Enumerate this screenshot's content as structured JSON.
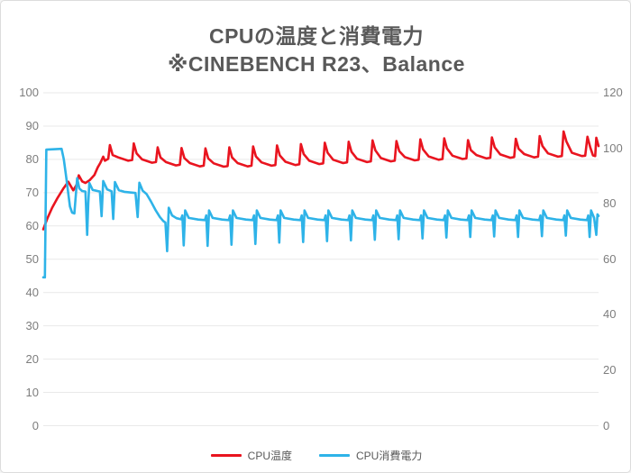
{
  "title": {
    "line1": "CPUの温度と消費電力",
    "line2": "※CINEBENCH R23、Balance"
  },
  "colors": {
    "temp_line": "#e9141f",
    "power_line": "#2eb3e8",
    "gridline": "#e9e9e9",
    "tick_text": "#7d7d7d",
    "title_text": "#595959",
    "frame_border": "#dcdcdc",
    "background": "#ffffff"
  },
  "chart_data": {
    "type": "line",
    "title": "CPUの温度と消費電力 ※CINEBENCH R23、Balance",
    "xlabel": "",
    "x_range": [
      0,
      100
    ],
    "x_ticks_visible": false,
    "grid": "horizontal-only",
    "legend_position": "bottom-center",
    "y_axis_left": {
      "range": [
        0,
        100
      ],
      "ticks": [
        0,
        10,
        20,
        30,
        40,
        50,
        60,
        70,
        80,
        90,
        100
      ],
      "unit": "°C"
    },
    "y_axis_right": {
      "range": [
        0,
        120
      ],
      "ticks": [
        0,
        20,
        40,
        60,
        80,
        100,
        120
      ],
      "unit": "W"
    },
    "series": [
      {
        "name": "CPU温度",
        "axis": "left",
        "unit": "°C",
        "color": "#e9141f",
        "points": [
          [
            0,
            59
          ],
          [
            0.8,
            62.5
          ],
          [
            1.6,
            65.5
          ],
          [
            2.6,
            68.5
          ],
          [
            3.6,
            71.2
          ],
          [
            4.5,
            73.3
          ],
          [
            5.4,
            70.7
          ],
          [
            6,
            72.4
          ],
          [
            6.4,
            75.2
          ],
          [
            7,
            73.4
          ],
          [
            7.6,
            72.9
          ],
          [
            8.4,
            73.8
          ],
          [
            9.2,
            75.3
          ],
          [
            9.8,
            77.6
          ],
          [
            10.3,
            79
          ],
          [
            10.8,
            80.8
          ],
          [
            11.1,
            79.6
          ],
          [
            11.7,
            80.2
          ],
          [
            12,
            84.3
          ],
          [
            12.5,
            81.3
          ],
          [
            13.5,
            80.6
          ],
          [
            15.3,
            79.6
          ],
          [
            16,
            79.8
          ],
          [
            16.3,
            84.8
          ],
          [
            16.8,
            81.8
          ],
          [
            17.8,
            80
          ],
          [
            19.6,
            79
          ],
          [
            20.3,
            79.2
          ],
          [
            20.6,
            83.6
          ],
          [
            21.1,
            80.6
          ],
          [
            22.1,
            79.2
          ],
          [
            23.9,
            78.2
          ],
          [
            24.6,
            78.4
          ],
          [
            24.9,
            83.4
          ],
          [
            25.4,
            80.4
          ],
          [
            26.4,
            78.9
          ],
          [
            28.2,
            77.9
          ],
          [
            28.9,
            78.1
          ],
          [
            29.2,
            83.3
          ],
          [
            29.7,
            80.3
          ],
          [
            30.7,
            78.8
          ],
          [
            32.5,
            77.8
          ],
          [
            33.2,
            78
          ],
          [
            33.5,
            83.6
          ],
          [
            34,
            80.6
          ],
          [
            35,
            78.9
          ],
          [
            36.8,
            77.9
          ],
          [
            37.5,
            78.1
          ],
          [
            37.8,
            83.9
          ],
          [
            38.3,
            80.9
          ],
          [
            39.3,
            79.1
          ],
          [
            41.1,
            78.1
          ],
          [
            41.8,
            78.3
          ],
          [
            42.1,
            84.2
          ],
          [
            42.6,
            81.2
          ],
          [
            43.6,
            79.3
          ],
          [
            45.4,
            78.3
          ],
          [
            46.1,
            78.5
          ],
          [
            46.4,
            84.6
          ],
          [
            46.9,
            81.6
          ],
          [
            47.9,
            79.6
          ],
          [
            49.7,
            78.6
          ],
          [
            50.4,
            78.8
          ],
          [
            50.7,
            85
          ],
          [
            51.2,
            82
          ],
          [
            52.2,
            79.9
          ],
          [
            54,
            78.9
          ],
          [
            54.7,
            79.1
          ],
          [
            55,
            85.3
          ],
          [
            55.5,
            82.3
          ],
          [
            56.5,
            80.2
          ],
          [
            58.3,
            79.2
          ],
          [
            59,
            79.4
          ],
          [
            59.3,
            85.7
          ],
          [
            59.8,
            82.7
          ],
          [
            60.8,
            80.4
          ],
          [
            62.6,
            79.4
          ],
          [
            63.3,
            79.6
          ],
          [
            63.6,
            85.5
          ],
          [
            64.1,
            82.5
          ],
          [
            65.1,
            80.7
          ],
          [
            66.9,
            79.7
          ],
          [
            67.6,
            79.9
          ],
          [
            67.9,
            86
          ],
          [
            68.4,
            83
          ],
          [
            69.4,
            80.9
          ],
          [
            71.2,
            79.9
          ],
          [
            71.9,
            80.1
          ],
          [
            72.2,
            86.3
          ],
          [
            72.7,
            83.3
          ],
          [
            73.7,
            81.1
          ],
          [
            75.5,
            80.1
          ],
          [
            76.2,
            80.3
          ],
          [
            76.5,
            85.8
          ],
          [
            77,
            82.8
          ],
          [
            78,
            81.3
          ],
          [
            79.8,
            80.3
          ],
          [
            80.5,
            80.5
          ],
          [
            80.8,
            86.6
          ],
          [
            81.3,
            83.6
          ],
          [
            82.3,
            81.5
          ],
          [
            84.1,
            80.5
          ],
          [
            84.8,
            80.7
          ],
          [
            85.1,
            86.2
          ],
          [
            85.6,
            83.2
          ],
          [
            86.6,
            81.6
          ],
          [
            88.4,
            80.6
          ],
          [
            89.1,
            80.8
          ],
          [
            89.4,
            87
          ],
          [
            89.9,
            84
          ],
          [
            90.9,
            81.8
          ],
          [
            92.7,
            80.8
          ],
          [
            93.4,
            81
          ],
          [
            93.7,
            88.4
          ],
          [
            94.2,
            85.4
          ],
          [
            95.2,
            82
          ],
          [
            97,
            81
          ],
          [
            97.6,
            81.1
          ],
          [
            98,
            86.8
          ],
          [
            98.5,
            83.6
          ],
          [
            99,
            81.2
          ],
          [
            99.4,
            81
          ],
          [
            99.6,
            86.5
          ],
          [
            100,
            84
          ]
        ]
      },
      {
        "name": "CPU消費電力",
        "axis": "right",
        "unit": "W",
        "color": "#2eb3e8",
        "points": [
          [
            0,
            53.5
          ],
          [
            0.3,
            53.5
          ],
          [
            0.55,
            99.5
          ],
          [
            3.3,
            99.8
          ],
          [
            3.7,
            96
          ],
          [
            4.1,
            90
          ],
          [
            4.8,
            79
          ],
          [
            5.2,
            76.8
          ],
          [
            5.6,
            76.5
          ],
          [
            6.1,
            89.2
          ],
          [
            6.5,
            85.5
          ],
          [
            7,
            84.6
          ],
          [
            7.6,
            84.4
          ],
          [
            7.9,
            68.8
          ],
          [
            8.1,
            80
          ],
          [
            8.3,
            87.5
          ],
          [
            8.9,
            85
          ],
          [
            10.2,
            84.4
          ],
          [
            10.5,
            75.5
          ],
          [
            10.8,
            88.2
          ],
          [
            11.5,
            85.2
          ],
          [
            12.3,
            84.5
          ],
          [
            12.6,
            74.5
          ],
          [
            12.9,
            87.8
          ],
          [
            13.6,
            84.9
          ],
          [
            14.6,
            84.3
          ],
          [
            16.6,
            83.9
          ],
          [
            17,
            75.2
          ],
          [
            17.3,
            87.6
          ],
          [
            17.9,
            84.7
          ],
          [
            18.6,
            83.5
          ],
          [
            19.4,
            80.8
          ],
          [
            20.2,
            77.8
          ],
          [
            21,
            75.2
          ],
          [
            21.6,
            73.8
          ],
          [
            22,
            73.2
          ],
          [
            22.3,
            62.9
          ],
          [
            22.6,
            78.6
          ],
          [
            23.2,
            75.8
          ],
          [
            24,
            74.8
          ],
          [
            24.8,
            74.4
          ],
          [
            25.05,
            75.8
          ],
          [
            25.3,
            65
          ],
          [
            25.55,
            77.6
          ],
          [
            26.2,
            74.9
          ],
          [
            27.9,
            74.3
          ],
          [
            29.1,
            74.1
          ],
          [
            29.35,
            75.8
          ],
          [
            29.6,
            64.8
          ],
          [
            29.85,
            77.6
          ],
          [
            30.5,
            74.9
          ],
          [
            32.2,
            74.3
          ],
          [
            33.4,
            74.1
          ],
          [
            33.65,
            75.8
          ],
          [
            33.9,
            65.2
          ],
          [
            34.15,
            77.6
          ],
          [
            34.8,
            74.9
          ],
          [
            36.5,
            74.3
          ],
          [
            37.7,
            74.1
          ],
          [
            37.95,
            75.8
          ],
          [
            38.2,
            65.5
          ],
          [
            38.45,
            77.6
          ],
          [
            39.1,
            74.9
          ],
          [
            40.8,
            74.3
          ],
          [
            42,
            74.1
          ],
          [
            42.25,
            75.8
          ],
          [
            42.5,
            66
          ],
          [
            42.75,
            77.6
          ],
          [
            43.4,
            74.9
          ],
          [
            45.1,
            74.3
          ],
          [
            46.3,
            74.1
          ],
          [
            46.55,
            75.8
          ],
          [
            46.8,
            66.2
          ],
          [
            47.05,
            77.6
          ],
          [
            47.7,
            74.9
          ],
          [
            49.4,
            74.3
          ],
          [
            50.6,
            74.1
          ],
          [
            50.85,
            75.8
          ],
          [
            51.1,
            66.5
          ],
          [
            51.35,
            77.6
          ],
          [
            52,
            74.9
          ],
          [
            53.7,
            74.3
          ],
          [
            54.9,
            74.1
          ],
          [
            55.15,
            75.8
          ],
          [
            55.4,
            66.8
          ],
          [
            55.65,
            77.6
          ],
          [
            56.3,
            74.9
          ],
          [
            58,
            74.3
          ],
          [
            59.2,
            74.1
          ],
          [
            59.45,
            75.8
          ],
          [
            59.7,
            67
          ],
          [
            59.95,
            77.6
          ],
          [
            60.6,
            74.9
          ],
          [
            62.3,
            74.3
          ],
          [
            63.5,
            74.1
          ],
          [
            63.75,
            75.8
          ],
          [
            64,
            67.2
          ],
          [
            64.25,
            77.6
          ],
          [
            64.9,
            74.9
          ],
          [
            66.6,
            74.3
          ],
          [
            67.8,
            74.1
          ],
          [
            68.05,
            75.8
          ],
          [
            68.3,
            67.5
          ],
          [
            68.55,
            77.6
          ],
          [
            69.2,
            74.9
          ],
          [
            70.9,
            74.3
          ],
          [
            72.1,
            74.1
          ],
          [
            72.35,
            75.8
          ],
          [
            72.6,
            67.8
          ],
          [
            72.85,
            77.6
          ],
          [
            73.5,
            74.9
          ],
          [
            75.2,
            74.3
          ],
          [
            76.4,
            74.1
          ],
          [
            76.65,
            75.8
          ],
          [
            76.9,
            68
          ],
          [
            77.15,
            77.6
          ],
          [
            77.8,
            74.9
          ],
          [
            79.5,
            74.3
          ],
          [
            80.7,
            74.1
          ],
          [
            80.95,
            75.8
          ],
          [
            81.2,
            68.2
          ],
          [
            81.45,
            77.6
          ],
          [
            82.1,
            74.9
          ],
          [
            83.8,
            74.3
          ],
          [
            85,
            74.1
          ],
          [
            85.25,
            75.8
          ],
          [
            85.5,
            68
          ],
          [
            85.75,
            77.6
          ],
          [
            86.4,
            74.9
          ],
          [
            88.1,
            74.3
          ],
          [
            89.3,
            74.1
          ],
          [
            89.55,
            75.8
          ],
          [
            89.8,
            68.3
          ],
          [
            90.05,
            77.6
          ],
          [
            90.7,
            74.9
          ],
          [
            92.4,
            74.3
          ],
          [
            93.6,
            74.1
          ],
          [
            93.85,
            75.8
          ],
          [
            94.1,
            68.5
          ],
          [
            94.35,
            77.6
          ],
          [
            95,
            74.9
          ],
          [
            96.7,
            74.3
          ],
          [
            97.9,
            74.1
          ],
          [
            98.15,
            75.8
          ],
          [
            98.4,
            68
          ],
          [
            98.65,
            77.6
          ],
          [
            99.2,
            74.9
          ],
          [
            99.6,
            68.8
          ],
          [
            99.8,
            76.2
          ],
          [
            100,
            75.6
          ]
        ]
      }
    ]
  },
  "legend": {
    "items": [
      {
        "label": "CPU温度",
        "color": "#e9141f"
      },
      {
        "label": "CPU消費電力",
        "color": "#2eb3e8"
      }
    ]
  }
}
